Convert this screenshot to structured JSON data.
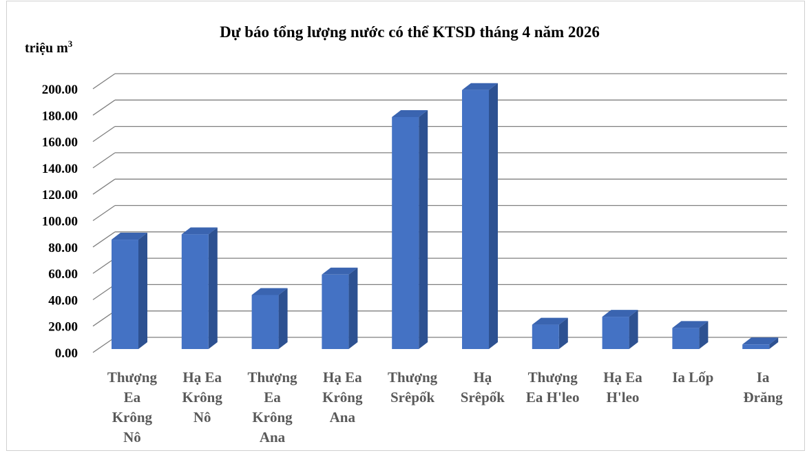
{
  "chart_data": {
    "type": "bar",
    "title": "Dự báo tổng lượng nước có thể  KTSD tháng 4 năm 2026",
    "ylabel": "triệu m",
    "ylabel_sup": "3",
    "xlabel": "",
    "ylim": [
      0,
      200
    ],
    "ytick_step": 20,
    "ytick_labels": [
      "0.00",
      "20.00",
      "40.00",
      "60.00",
      "80.00",
      "100.00",
      "120.00",
      "140.00",
      "160.00",
      "180.00",
      "200.00"
    ],
    "grid": true,
    "legend": "none",
    "bar_color": "#4472c4",
    "categories": [
      "Thượng Ea Krông Nô",
      "Hạ Ea Krông Nô",
      "Thượng Ea Krông Ana",
      "Hạ Ea Krông Ana",
      "Thượng Srêpốk",
      "Hạ Srêpốk",
      "Thượng Ea H'leo",
      "Hạ Ea H'leo",
      "Ia Lốp",
      "Ia Đrăng"
    ],
    "category_lines": [
      [
        "Thượng",
        "Ea",
        "Krông",
        "Nô"
      ],
      [
        "Hạ Ea",
        "Krông",
        "Nô"
      ],
      [
        "Thượng",
        "Ea",
        "Krông",
        "Ana"
      ],
      [
        "Hạ Ea",
        "Krông",
        "Ana"
      ],
      [
        "Thượng",
        "Srêpốk"
      ],
      [
        "Hạ",
        "Srêpốk"
      ],
      [
        "Thượng",
        "Ea H'leo"
      ],
      [
        "Hạ Ea",
        "H'leo"
      ],
      [
        "Ia Lốp"
      ],
      [
        "Ia",
        "Đrăng"
      ]
    ],
    "values": [
      83.0,
      87.0,
      41.0,
      56.5,
      176.0,
      196.5,
      18.5,
      24.5,
      16.0,
      3.5
    ]
  }
}
